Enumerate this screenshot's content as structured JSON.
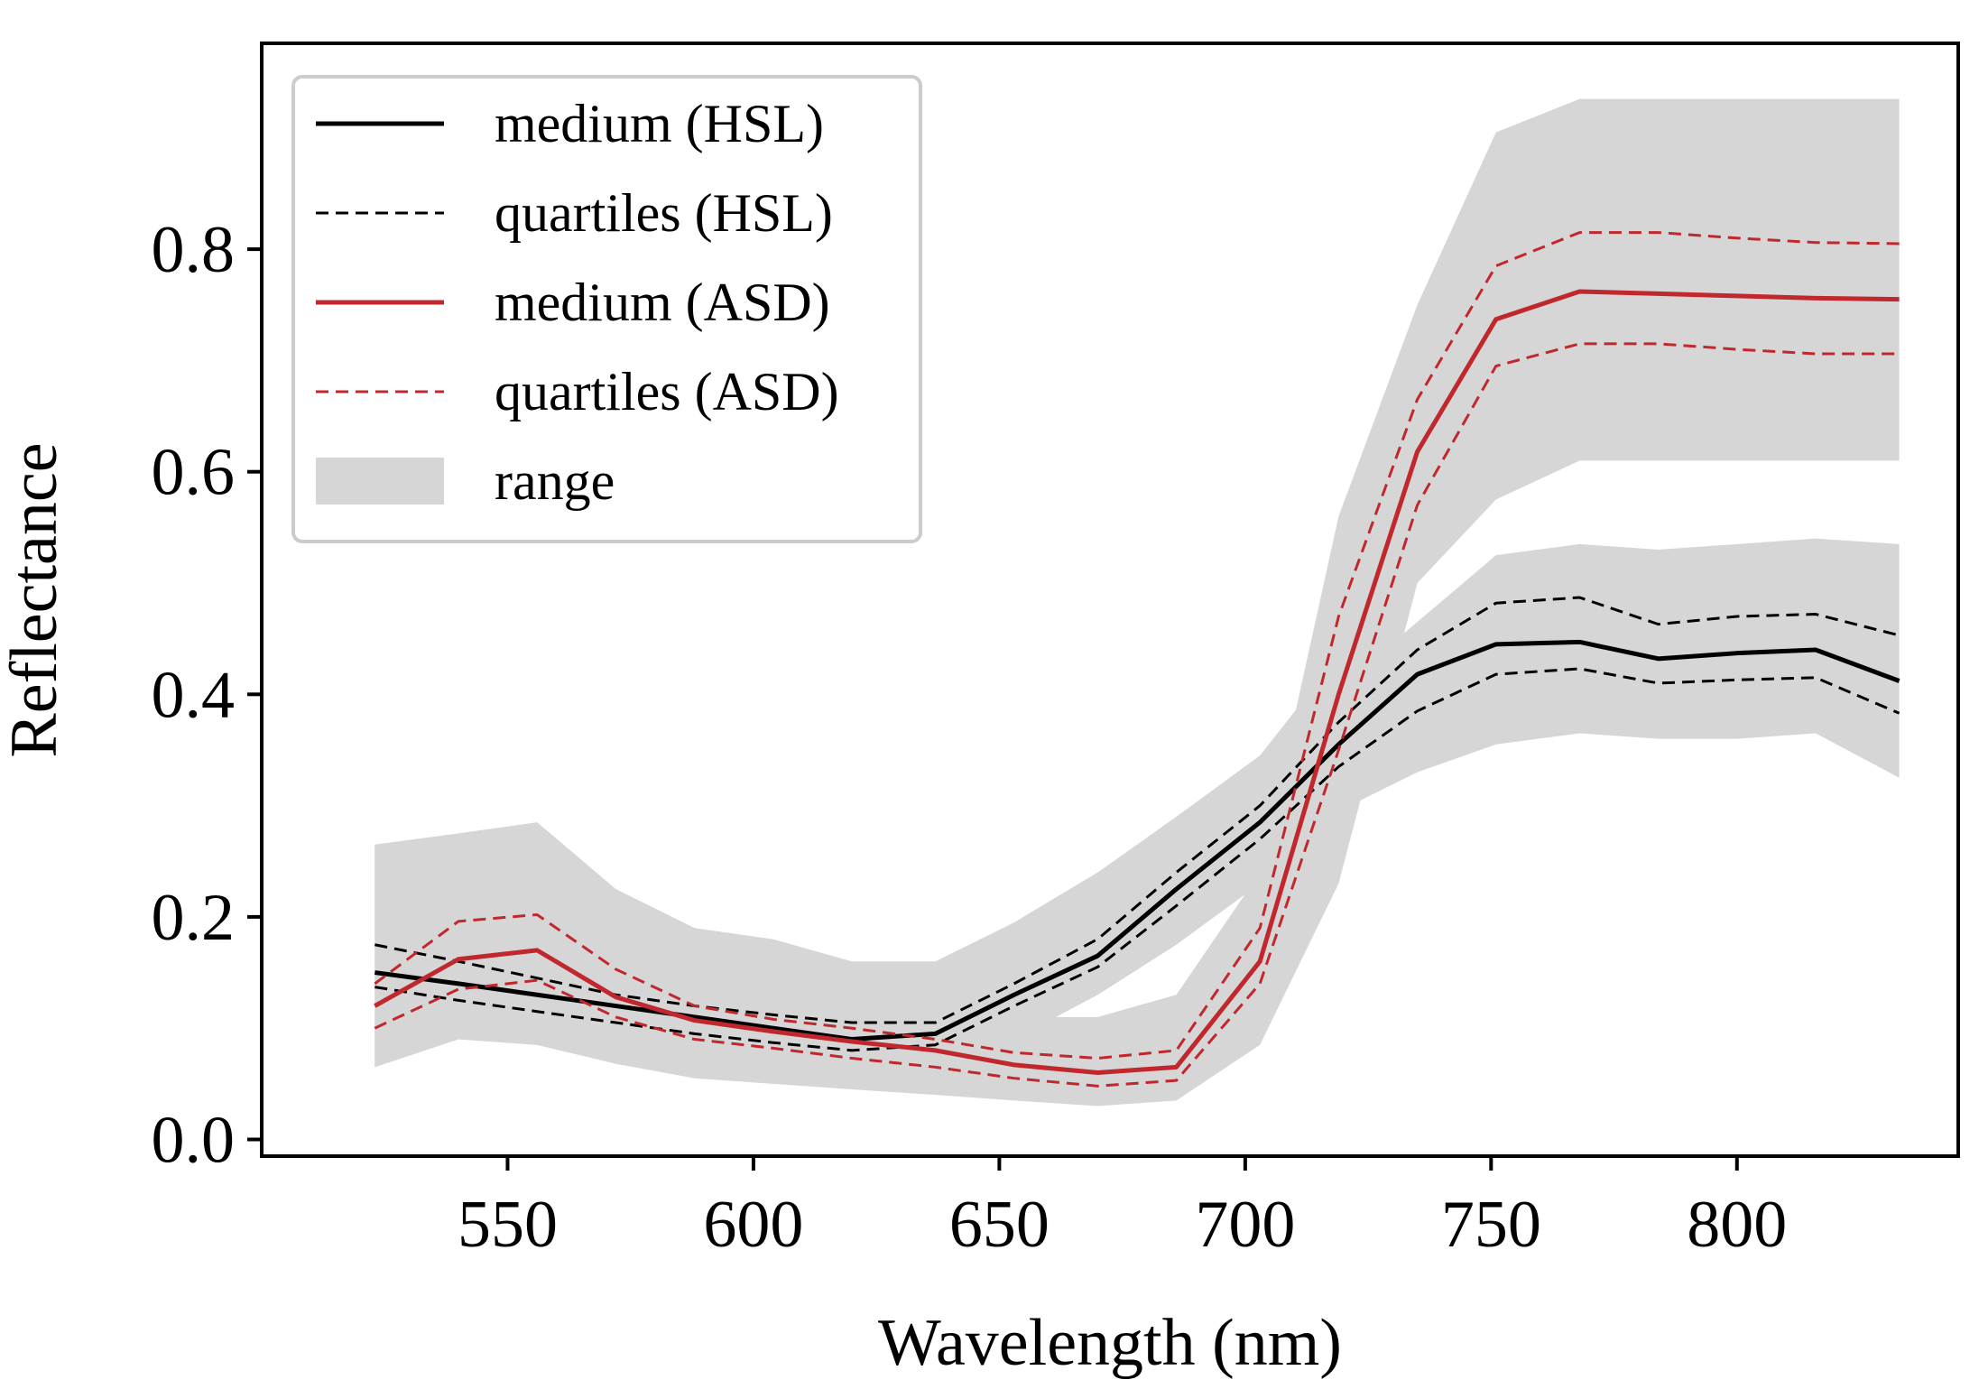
{
  "chart_data": {
    "type": "line",
    "title": "",
    "xlabel": "Wavelength (nm)",
    "ylabel": "Reflectance",
    "xlim": [
      500,
      845
    ],
    "ylim": [
      -0.015,
      0.985
    ],
    "xticks": [
      550,
      600,
      650,
      700,
      750,
      800
    ],
    "yticks": [
      0.0,
      0.2,
      0.4,
      0.6,
      0.8
    ],
    "xtick_labels": [
      "550",
      "600",
      "650",
      "700",
      "750",
      "800"
    ],
    "ytick_labels": [
      "0.0",
      "0.2",
      "0.4",
      "0.6",
      "0.8"
    ],
    "grid": false,
    "legend_position": "top-left",
    "colors": {
      "hsl": "#000000",
      "asd": "#c0282d",
      "range": "#d6d6d6"
    },
    "legend": [
      {
        "label": "medium (HSL)",
        "style": "solid",
        "color": "#000000"
      },
      {
        "label": "quartiles (HSL)",
        "style": "dashed",
        "color": "#000000"
      },
      {
        "label": "medium (ASD)",
        "style": "solid",
        "color": "#c0282d"
      },
      {
        "label": "quartiles (ASD)",
        "style": "dashed",
        "color": "#c0282d"
      },
      {
        "label": "range",
        "style": "patch",
        "color": "#d6d6d6"
      }
    ],
    "series": [
      {
        "name": "medium (HSL)",
        "style": "solid",
        "color": "#000000",
        "x": [
          523,
          540,
          556,
          572,
          588,
          604,
          620,
          637,
          653,
          670,
          686,
          703,
          719,
          735,
          751,
          768,
          784,
          800,
          816,
          833
        ],
        "y": [
          0.15,
          0.14,
          0.13,
          0.12,
          0.11,
          0.1,
          0.09,
          0.095,
          0.13,
          0.165,
          0.225,
          0.285,
          0.355,
          0.418,
          0.445,
          0.447,
          0.432,
          0.437,
          0.44,
          0.412
        ]
      },
      {
        "name": "quartiles (HSL) upper",
        "style": "dashed",
        "color": "#000000",
        "x": [
          523,
          540,
          556,
          572,
          588,
          604,
          620,
          637,
          653,
          670,
          686,
          703,
          719,
          735,
          751,
          768,
          784,
          800,
          816,
          833
        ],
        "y": [
          0.175,
          0.16,
          0.145,
          0.13,
          0.12,
          0.112,
          0.105,
          0.105,
          0.14,
          0.18,
          0.24,
          0.3,
          0.375,
          0.44,
          0.482,
          0.487,
          0.463,
          0.47,
          0.472,
          0.453
        ]
      },
      {
        "name": "quartiles (HSL) lower",
        "style": "dashed",
        "color": "#000000",
        "x": [
          523,
          540,
          556,
          572,
          588,
          604,
          620,
          637,
          653,
          670,
          686,
          703,
          719,
          735,
          751,
          768,
          784,
          800,
          816,
          833
        ],
        "y": [
          0.137,
          0.125,
          0.115,
          0.105,
          0.095,
          0.087,
          0.08,
          0.085,
          0.12,
          0.155,
          0.21,
          0.27,
          0.335,
          0.385,
          0.418,
          0.423,
          0.41,
          0.413,
          0.415,
          0.383
        ]
      },
      {
        "name": "medium (ASD)",
        "style": "solid",
        "color": "#c0282d",
        "x": [
          523,
          540,
          556,
          572,
          588,
          604,
          620,
          637,
          653,
          670,
          686,
          703,
          719,
          735,
          751,
          768,
          784,
          800,
          816,
          833
        ],
        "y": [
          0.12,
          0.162,
          0.17,
          0.128,
          0.107,
          0.097,
          0.088,
          0.08,
          0.067,
          0.06,
          0.065,
          0.16,
          0.4,
          0.618,
          0.737,
          0.762,
          0.76,
          0.758,
          0.756,
          0.755
        ]
      },
      {
        "name": "quartiles (ASD) upper",
        "style": "dashed",
        "color": "#c0282d",
        "x": [
          523,
          540,
          556,
          572,
          588,
          604,
          620,
          637,
          653,
          670,
          686,
          703,
          719,
          735,
          751,
          768,
          784,
          800,
          816,
          833
        ],
        "y": [
          0.14,
          0.196,
          0.202,
          0.153,
          0.12,
          0.108,
          0.1,
          0.09,
          0.078,
          0.073,
          0.08,
          0.19,
          0.47,
          0.665,
          0.785,
          0.815,
          0.815,
          0.81,
          0.806,
          0.805
        ]
      },
      {
        "name": "quartiles (ASD) lower",
        "style": "dashed",
        "color": "#c0282d",
        "x": [
          523,
          540,
          556,
          572,
          588,
          604,
          620,
          637,
          653,
          670,
          686,
          703,
          719,
          735,
          751,
          768,
          784,
          800,
          816,
          833
        ],
        "y": [
          0.1,
          0.135,
          0.143,
          0.11,
          0.09,
          0.082,
          0.073,
          0.065,
          0.055,
          0.048,
          0.053,
          0.14,
          0.35,
          0.57,
          0.695,
          0.715,
          0.715,
          0.71,
          0.706,
          0.706
        ]
      }
    ],
    "ranges": [
      {
        "name": "range (HSL)",
        "x": [
          523,
          540,
          556,
          572,
          588,
          604,
          620,
          637,
          653,
          670,
          686,
          703,
          711,
          719,
          735,
          751,
          768,
          784,
          800,
          816,
          833
        ],
        "upper": [
          0.265,
          0.27,
          0.285,
          0.225,
          0.19,
          0.18,
          0.16,
          0.16,
          0.195,
          0.24,
          0.29,
          0.345,
          0.39,
          0.405,
          0.465,
          0.525,
          0.535,
          0.53,
          0.535,
          0.54,
          0.535
        ],
        "lower": [
          0.065,
          0.09,
          0.085,
          0.068,
          0.056,
          0.05,
          0.048,
          0.045,
          0.09,
          0.13,
          0.175,
          0.23,
          0.265,
          0.295,
          0.33,
          0.355,
          0.365,
          0.36,
          0.36,
          0.365,
          0.325
        ]
      },
      {
        "name": "range (ASD)",
        "x": [
          523,
          540,
          556,
          572,
          588,
          604,
          620,
          637,
          653,
          670,
          686,
          703,
          719,
          735,
          751,
          768,
          784,
          800,
          816,
          833
        ],
        "upper": [
          0.265,
          0.275,
          0.285,
          0.225,
          0.19,
          0.17,
          0.15,
          0.13,
          0.11,
          0.11,
          0.13,
          0.24,
          0.56,
          0.75,
          0.905,
          0.935,
          0.935,
          0.935,
          0.935,
          0.935
        ],
        "lower": [
          0.065,
          0.09,
          0.085,
          0.068,
          0.055,
          0.05,
          0.045,
          0.04,
          0.035,
          0.03,
          0.035,
          0.085,
          0.23,
          0.5,
          0.575,
          0.61,
          0.61,
          0.61,
          0.61,
          0.61
        ]
      }
    ]
  }
}
